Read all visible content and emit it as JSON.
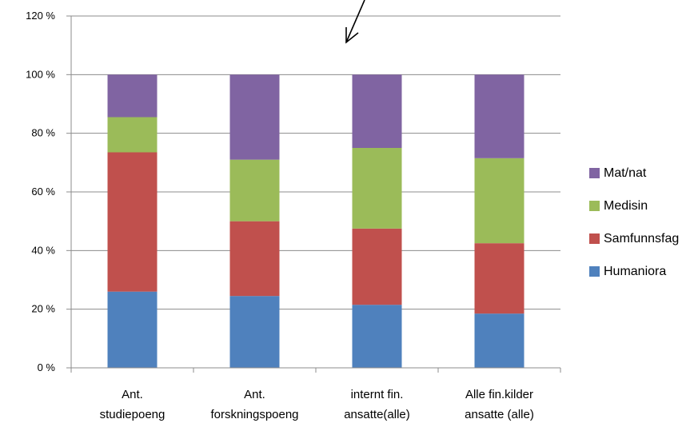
{
  "chart_data": {
    "type": "bar",
    "stacked": true,
    "categories": [
      [
        "Ant.",
        "studiepoeng"
      ],
      [
        "Ant.",
        "forskningspoeng"
      ],
      [
        "internt fin.",
        "ansatte(alle)"
      ],
      [
        "Alle fin.kilder",
        "ansatte (alle)"
      ]
    ],
    "series": [
      {
        "name": "Humaniora",
        "color": "#4F81BD",
        "values": [
          26,
          24.5,
          21.5,
          18.5
        ]
      },
      {
        "name": "Samfunnsfag",
        "color": "#C0504D",
        "values": [
          47.5,
          25.5,
          26,
          24
        ]
      },
      {
        "name": "Medisin",
        "color": "#9BBB59",
        "values": [
          12,
          21,
          27.5,
          29
        ]
      },
      {
        "name": "Mat/nat",
        "color": "#8064A2",
        "values": [
          14.5,
          29,
          25,
          28.5
        ]
      }
    ],
    "ylim": [
      0,
      120
    ],
    "yticks": [
      "0 %",
      "20 %",
      "40 %",
      "60 %",
      "80 %",
      "100 %",
      "120 %"
    ],
    "grid": true,
    "legend_position": "right",
    "annotation": "arrow"
  }
}
